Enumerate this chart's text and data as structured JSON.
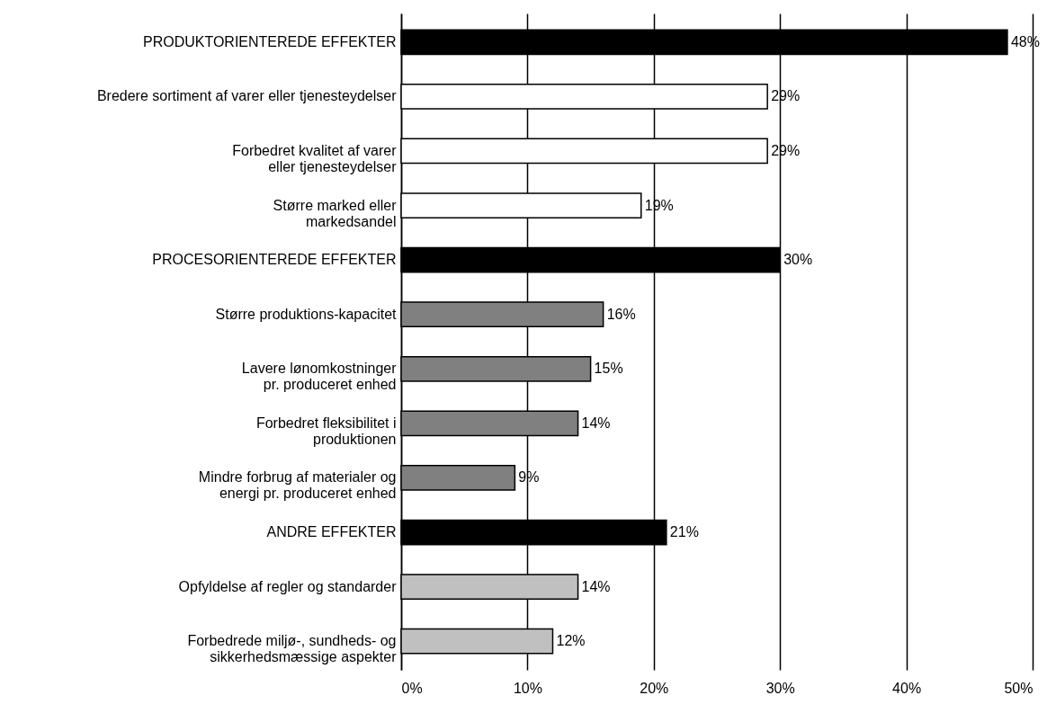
{
  "chart_data": {
    "type": "bar",
    "orientation": "horizontal",
    "categories": [
      "PRODUKTORIENTEREDE EFFEKTER",
      "Bredere sortiment af varer eller tjenesteydelser",
      "Forbedret kvalitet af varer\neller tjenesteydelser",
      "Større marked eller\nmarkedsandel",
      "PROCESORIENTEREDE EFFEKTER",
      "Større produktions-kapacitet",
      "Lavere lønomkostninger\npr. produceret enhed",
      "Forbedret fleksibilitet i\nproduktionen",
      "Mindre forbrug af materialer og\nenergi pr. produceret enhed",
      "ANDRE EFFEKTER",
      "Opfyldelse af regler og standarder",
      "Forbedrede miljø-, sundheds- og\nsikkerhedsmæssige aspekter"
    ],
    "values": [
      48,
      29,
      29,
      19,
      30,
      16,
      15,
      14,
      9,
      21,
      14,
      12
    ],
    "colors": [
      "#000000",
      "#ffffff",
      "#ffffff",
      "#ffffff",
      "#000000",
      "#808080",
      "#808080",
      "#808080",
      "#808080",
      "#000000",
      "#c0c0c0",
      "#c0c0c0"
    ],
    "value_labels": [
      "48%",
      "29%",
      "29%",
      "19%",
      "30%",
      "16%",
      "15%",
      "14%",
      "9%",
      "21%",
      "14%",
      "12%"
    ],
    "xlim": [
      0,
      50
    ],
    "xticks": [
      {
        "value": 0,
        "label": "0%"
      },
      {
        "value": 10,
        "label": "10%"
      },
      {
        "value": 20,
        "label": "20%"
      },
      {
        "value": 30,
        "label": "30%"
      },
      {
        "value": 40,
        "label": "40%"
      },
      {
        "value": 50,
        "label": "50%"
      }
    ],
    "grid": "x"
  }
}
